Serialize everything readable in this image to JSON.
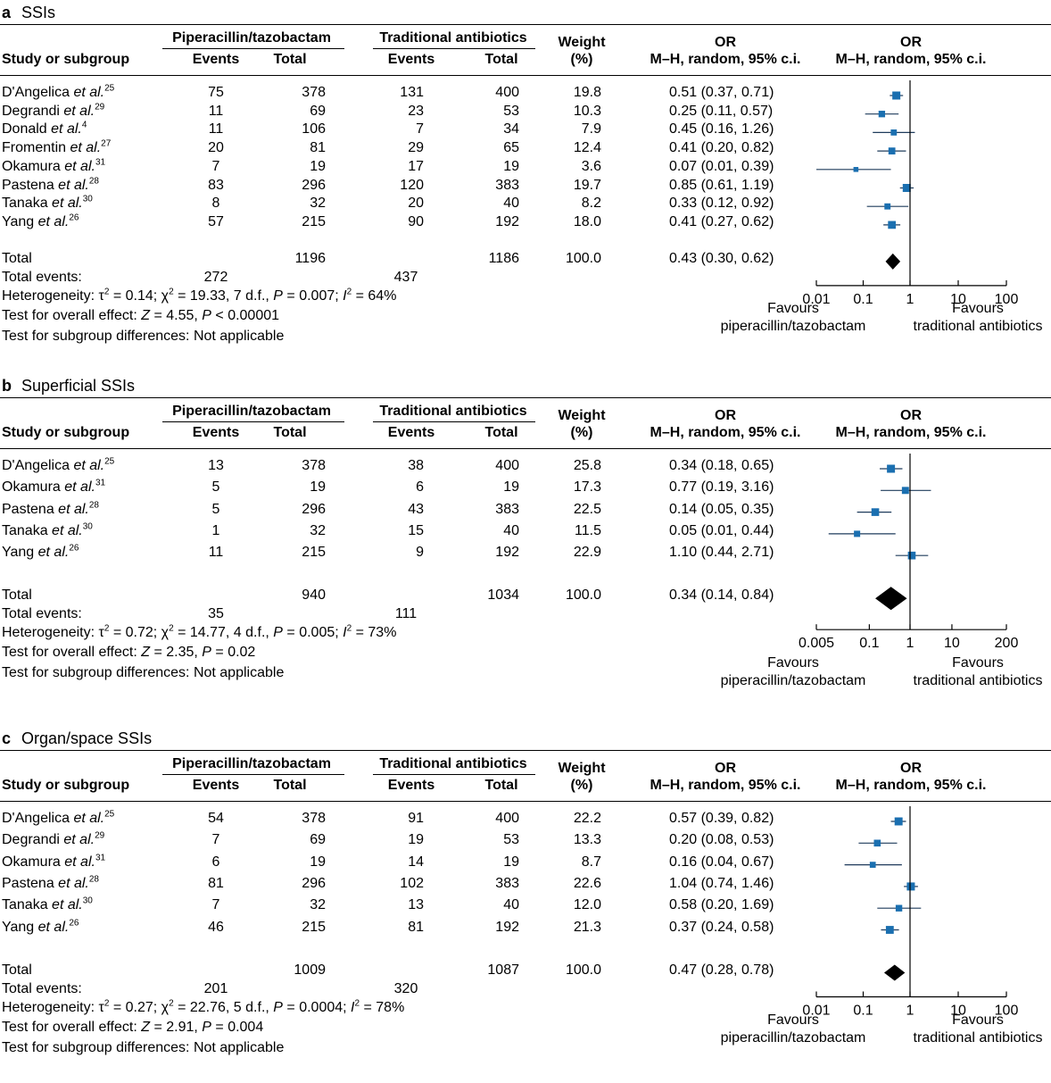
{
  "common": {
    "group_pip": "Piperacillin/tazobactam",
    "group_trad": "Traditional antibiotics",
    "col_study": "Study or subgroup",
    "col_events": "Events",
    "col_total": "Total",
    "col_weight_1": "Weight",
    "col_weight_2": "(%)",
    "col_or_1": "OR",
    "col_or_2": "M–H, random, 95% c.i.",
    "et_al": "et al.",
    "total_label": "Total",
    "total_events_label": "Total events:",
    "subgroup_text": "Test for subgroup differences: Not applicable",
    "favours": "Favours",
    "favours_pip": "piperacillin/tazobactam",
    "favours_trad": "traditional antibiotics",
    "colors": {
      "marker": "#1a6fb0",
      "line": "#1f3b5c",
      "diamond": "#000000"
    }
  },
  "chart_data": [
    {
      "type": "forest",
      "letter": "a",
      "title": "SSIs",
      "x_scale": "log",
      "xlim": [
        0.01,
        100
      ],
      "ticks": [
        "0.01",
        "0.1",
        "1",
        "10",
        "100"
      ],
      "studies": [
        {
          "author": "D'Angelica",
          "ref": "25",
          "pe": 75,
          "pt": 378,
          "te": 131,
          "tt": 400,
          "weight": "19.8",
          "or_text": "0.51 (0.37, 0.71)",
          "or": 0.51,
          "lo": 0.37,
          "hi": 0.71
        },
        {
          "author": "Degrandi",
          "ref": "29",
          "pe": 11,
          "pt": 69,
          "te": 23,
          "tt": 53,
          "weight": "10.3",
          "or_text": "0.25 (0.11, 0.57)",
          "or": 0.25,
          "lo": 0.11,
          "hi": 0.57
        },
        {
          "author": "Donald",
          "ref": "4",
          "pe": 11,
          "pt": 106,
          "te": 7,
          "tt": 34,
          "weight": "7.9",
          "or_text": "0.45 (0.16, 1.26)",
          "or": 0.45,
          "lo": 0.16,
          "hi": 1.26
        },
        {
          "author": "Fromentin",
          "ref": "27",
          "pe": 20,
          "pt": 81,
          "te": 29,
          "tt": 65,
          "weight": "12.4",
          "or_text": "0.41 (0.20, 0.82)",
          "or": 0.41,
          "lo": 0.2,
          "hi": 0.82
        },
        {
          "author": "Okamura",
          "ref": "31",
          "pe": 7,
          "pt": 19,
          "te": 17,
          "tt": 19,
          "weight": "3.6",
          "or_text": "0.07 (0.01, 0.39)",
          "or": 0.07,
          "lo": 0.01,
          "hi": 0.39
        },
        {
          "author": "Pastena",
          "ref": "28",
          "pe": 83,
          "pt": 296,
          "te": 120,
          "tt": 383,
          "weight": "19.7",
          "or_text": "0.85 (0.61, 1.19)",
          "or": 0.85,
          "lo": 0.61,
          "hi": 1.19
        },
        {
          "author": "Tanaka",
          "ref": "30",
          "pe": 8,
          "pt": 32,
          "te": 20,
          "tt": 40,
          "weight": "8.2",
          "or_text": "0.33 (0.12, 0.92)",
          "or": 0.33,
          "lo": 0.12,
          "hi": 0.92
        },
        {
          "author": "Yang",
          "ref": "26",
          "pe": 57,
          "pt": 215,
          "te": 90,
          "tt": 192,
          "weight": "18.0",
          "or_text": "0.41 (0.27, 0.62)",
          "or": 0.41,
          "lo": 0.27,
          "hi": 0.62
        }
      ],
      "total": {
        "pt": 1196,
        "tt": 1186,
        "pe": 272,
        "te": 437,
        "weight": "100.0",
        "or_text": "0.43 (0.30, 0.62)",
        "or": 0.43,
        "lo": 0.3,
        "hi": 0.62
      },
      "heterogeneity": {
        "tau2": "0.14",
        "chi2": "19.33",
        "df": "7",
        "p_op": "=",
        "p": "0.007",
        "i2": "64%"
      },
      "overall": {
        "z": "4.55",
        "p_op": "<",
        "p": "0.00001"
      }
    },
    {
      "type": "forest",
      "letter": "b",
      "title": "Superficial SSIs",
      "x_scale": "log",
      "xlim": [
        0.005,
        200
      ],
      "ticks": [
        "0.005",
        "0.1",
        "1",
        "10",
        "200"
      ],
      "studies": [
        {
          "author": "D'Angelica",
          "ref": "25",
          "pe": 13,
          "pt": 378,
          "te": 38,
          "tt": 400,
          "weight": "25.8",
          "or_text": "0.34 (0.18, 0.65)",
          "or": 0.34,
          "lo": 0.18,
          "hi": 0.65
        },
        {
          "author": "Okamura",
          "ref": "31",
          "pe": 5,
          "pt": 19,
          "te": 6,
          "tt": 19,
          "weight": "17.3",
          "or_text": "0.77 (0.19, 3.16)",
          "or": 0.77,
          "lo": 0.19,
          "hi": 3.16
        },
        {
          "author": "Pastena",
          "ref": "28",
          "pe": 5,
          "pt": 296,
          "te": 43,
          "tt": 383,
          "weight": "22.5",
          "or_text": "0.14 (0.05, 0.35)",
          "or": 0.14,
          "lo": 0.05,
          "hi": 0.35
        },
        {
          "author": "Tanaka",
          "ref": "30",
          "pe": 1,
          "pt": 32,
          "te": 15,
          "tt": 40,
          "weight": "11.5",
          "or_text": "0.05 (0.01, 0.44)",
          "or": 0.05,
          "lo": 0.01,
          "hi": 0.44
        },
        {
          "author": "Yang",
          "ref": "26",
          "pe": 11,
          "pt": 215,
          "te": 9,
          "tt": 192,
          "weight": "22.9",
          "or_text": "1.10 (0.44, 2.71)",
          "or": 1.1,
          "lo": 0.44,
          "hi": 2.71
        }
      ],
      "total": {
        "pt": 940,
        "tt": 1034,
        "pe": 35,
        "te": 111,
        "weight": "100.0",
        "or_text": "0.34 (0.14, 0.84)",
        "or": 0.34,
        "lo": 0.14,
        "hi": 0.84
      },
      "heterogeneity": {
        "tau2": "0.72",
        "chi2": "14.77",
        "df": "4",
        "p_op": "=",
        "p": "0.005",
        "i2": "73%"
      },
      "overall": {
        "z": "2.35",
        "p_op": "=",
        "p": "0.02"
      }
    },
    {
      "type": "forest",
      "letter": "c",
      "title": "Organ/space SSIs",
      "x_scale": "log",
      "xlim": [
        0.01,
        100
      ],
      "ticks": [
        "0.01",
        "0.1",
        "1",
        "10",
        "100"
      ],
      "studies": [
        {
          "author": "D'Angelica",
          "ref": "25",
          "pe": 54,
          "pt": 378,
          "te": 91,
          "tt": 400,
          "weight": "22.2",
          "or_text": "0.57 (0.39, 0.82)",
          "or": 0.57,
          "lo": 0.39,
          "hi": 0.82
        },
        {
          "author": "Degrandi",
          "ref": "29",
          "pe": 7,
          "pt": 69,
          "te": 19,
          "tt": 53,
          "weight": "13.3",
          "or_text": "0.20 (0.08, 0.53)",
          "or": 0.2,
          "lo": 0.08,
          "hi": 0.53
        },
        {
          "author": "Okamura",
          "ref": "31",
          "pe": 6,
          "pt": 19,
          "te": 14,
          "tt": 19,
          "weight": "8.7",
          "or_text": "0.16 (0.04, 0.67)",
          "or": 0.16,
          "lo": 0.04,
          "hi": 0.67
        },
        {
          "author": "Pastena",
          "ref": "28",
          "pe": 81,
          "pt": 296,
          "te": 102,
          "tt": 383,
          "weight": "22.6",
          "or_text": "1.04 (0.74, 1.46)",
          "or": 1.04,
          "lo": 0.74,
          "hi": 1.46
        },
        {
          "author": "Tanaka",
          "ref": "30",
          "pe": 7,
          "pt": 32,
          "te": 13,
          "tt": 40,
          "weight": "12.0",
          "or_text": "0.58 (0.20, 1.69)",
          "or": 0.58,
          "lo": 0.2,
          "hi": 1.69
        },
        {
          "author": "Yang",
          "ref": "26",
          "pe": 46,
          "pt": 215,
          "te": 81,
          "tt": 192,
          "weight": "21.3",
          "or_text": "0.37 (0.24, 0.58)",
          "or": 0.37,
          "lo": 0.24,
          "hi": 0.58
        }
      ],
      "total": {
        "pt": 1009,
        "tt": 1087,
        "pe": 201,
        "te": 320,
        "weight": "100.0",
        "or_text": "0.47 (0.28, 0.78)",
        "or": 0.47,
        "lo": 0.28,
        "hi": 0.78
      },
      "heterogeneity": {
        "tau2": "0.27",
        "chi2": "22.76",
        "df": "5",
        "p_op": "=",
        "p": "0.0004",
        "i2": "78%"
      },
      "overall": {
        "z": "2.91",
        "p_op": "=",
        "p": "0.004"
      }
    }
  ]
}
